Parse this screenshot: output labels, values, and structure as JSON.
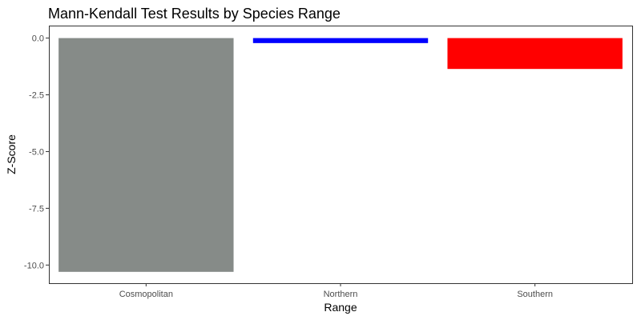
{
  "chart_data": {
    "type": "bar",
    "title": "Mann-Kendall Test Results by Species Range",
    "xlabel": "Range",
    "ylabel": "Z-Score",
    "categories": [
      "Cosmopolitan",
      "Northern",
      "Southern"
    ],
    "values": [
      -10.3,
      -0.22,
      -1.36
    ],
    "colors": [
      "#868b88",
      "#0000ff",
      "#ff0000"
    ],
    "ylim": [
      -10.8,
      0.55
    ],
    "yticks": [
      0.0,
      -2.5,
      -5.0,
      -7.5,
      -10.0
    ],
    "ytick_labels": [
      "0.0",
      "-2.5",
      "-5.0",
      "-7.5",
      "-10.0"
    ],
    "grid": false,
    "legend": "none"
  }
}
